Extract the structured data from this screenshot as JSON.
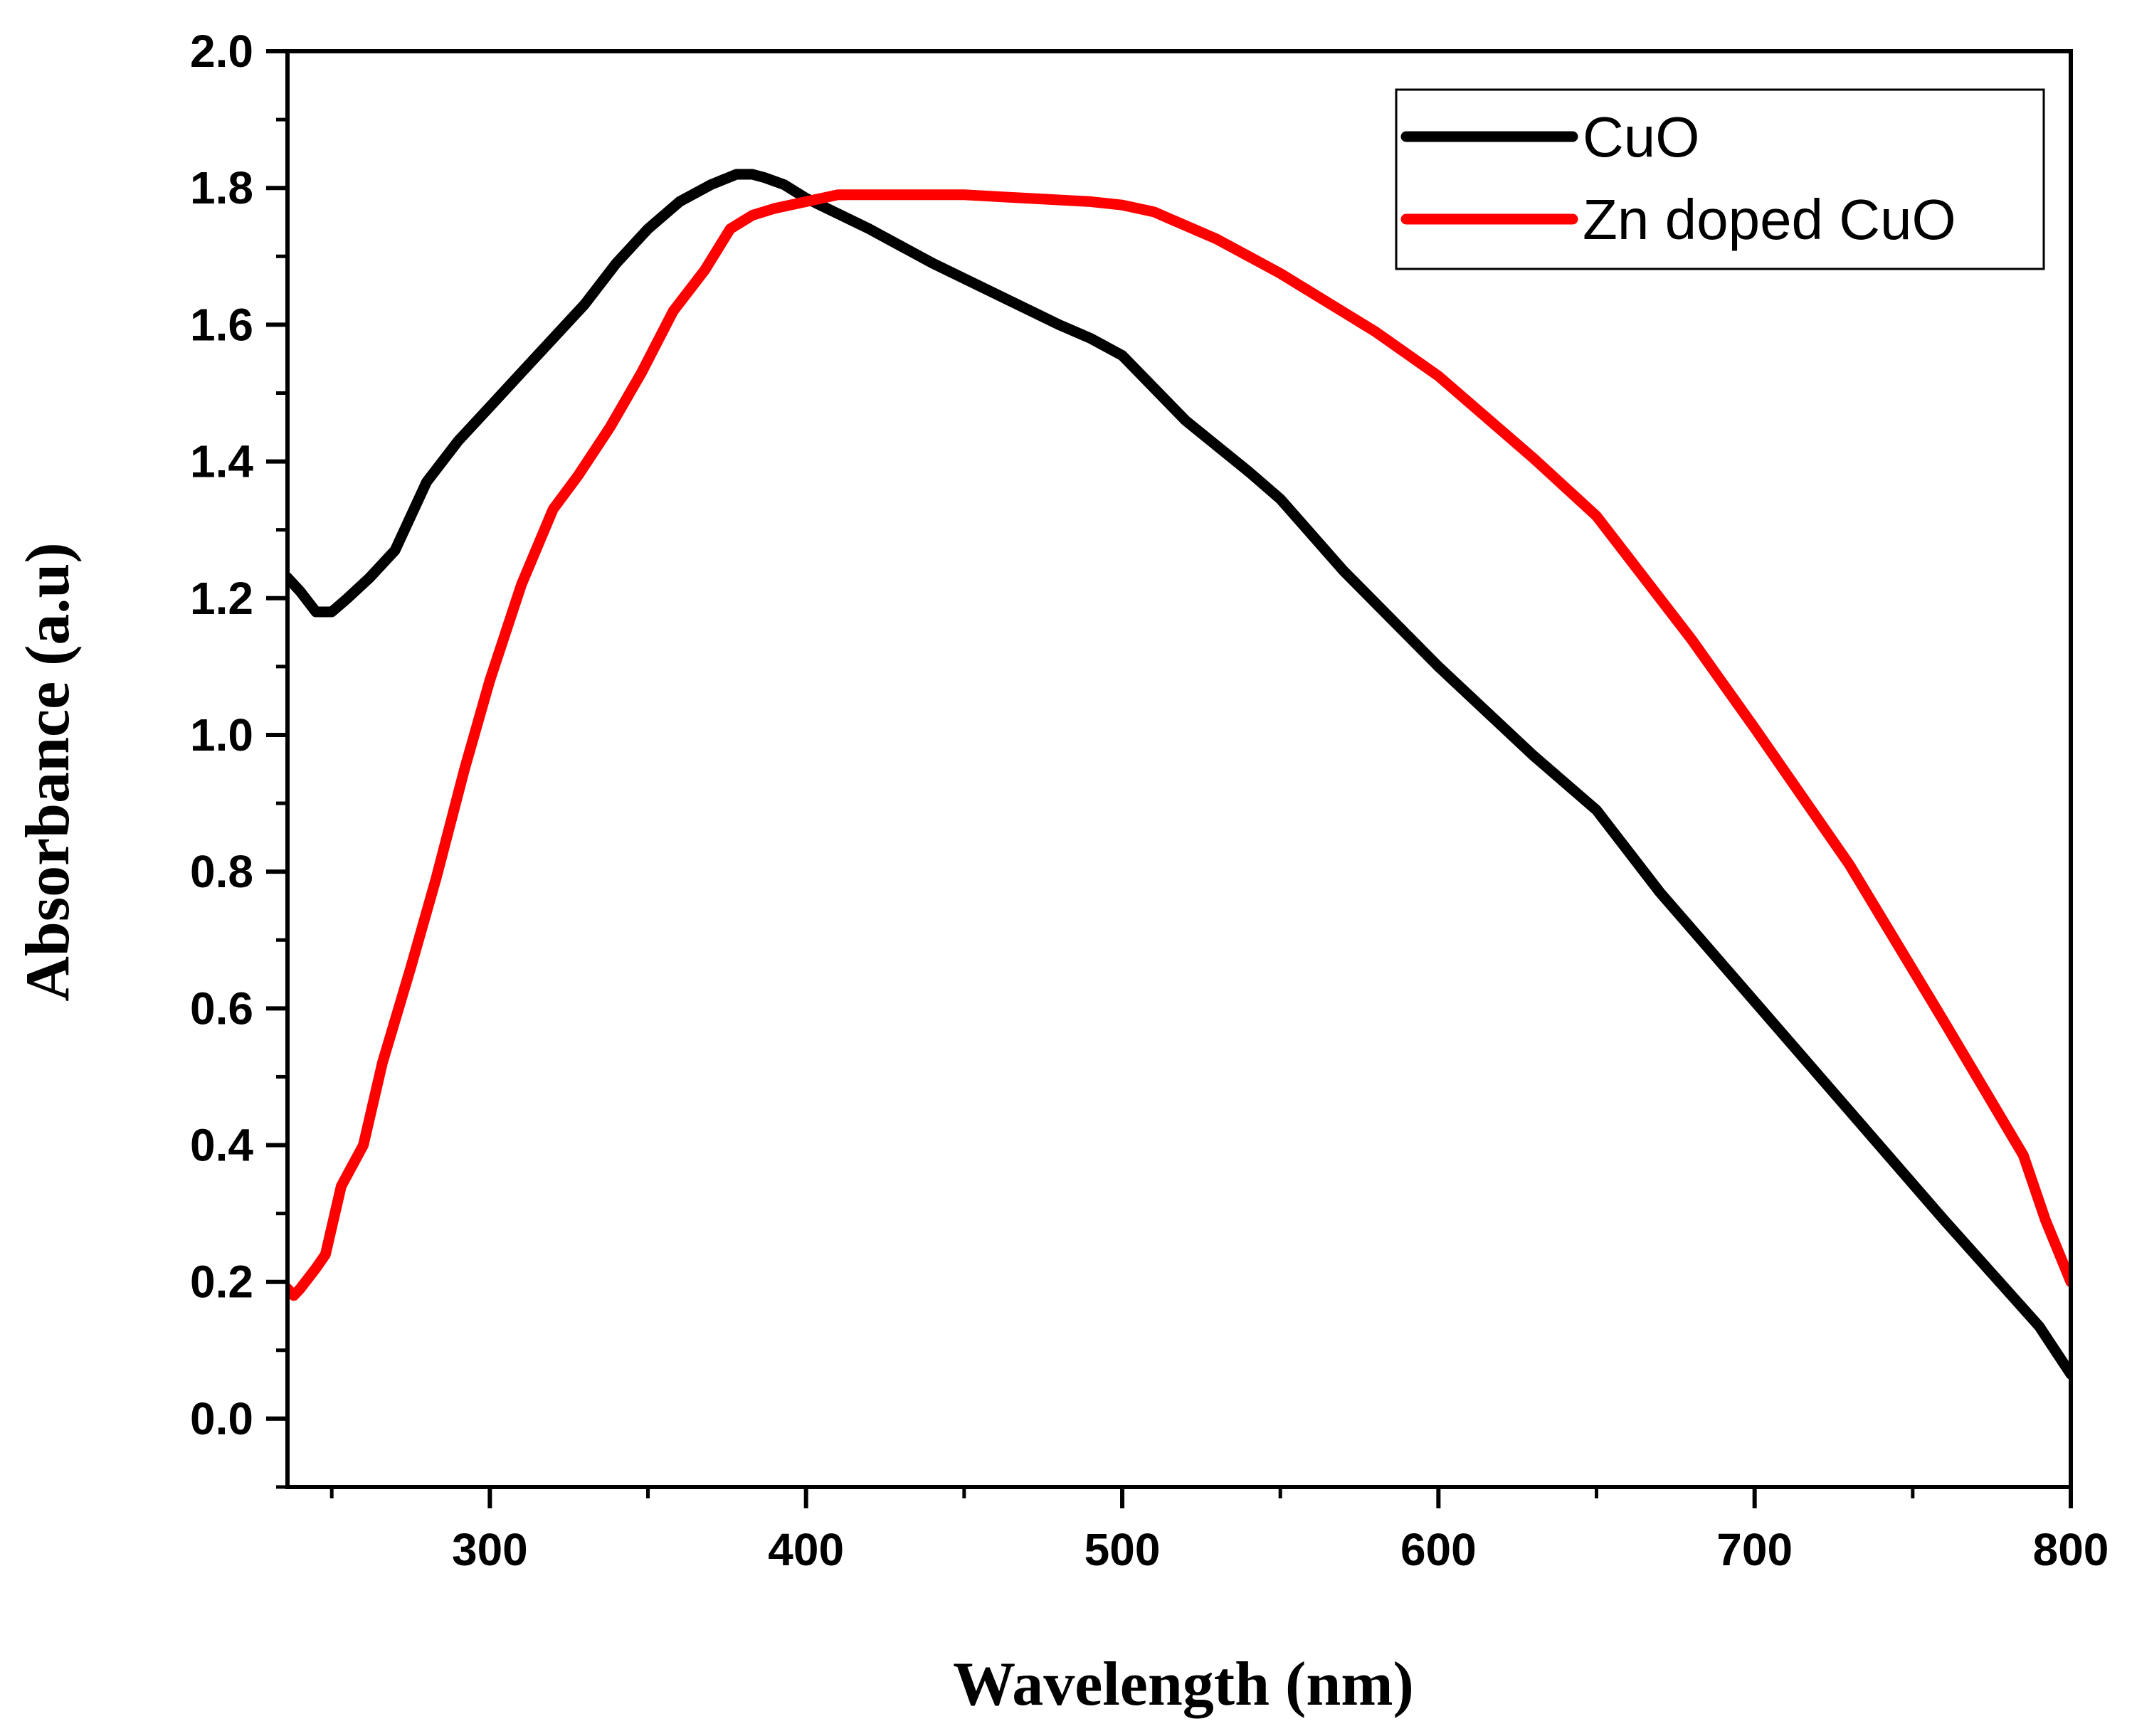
{
  "chart_data": {
    "type": "line",
    "title": "",
    "xlabel": "Wavelength (nm)",
    "ylabel": "Absorbance (a.u)",
    "xlim": [
      236,
      800
    ],
    "ylim": [
      -0.1,
      2.0
    ],
    "xticks": [
      300,
      400,
      500,
      600,
      700,
      800
    ],
    "xtick_labels": [
      "300",
      "400",
      "500",
      "600",
      "700",
      "800"
    ],
    "yticks": [
      0.0,
      0.2,
      0.4,
      0.6,
      0.8,
      1.0,
      1.2,
      1.4,
      1.6,
      1.8,
      2.0
    ],
    "ytick_labels": [
      "0.0",
      "0.2",
      "0.4",
      "0.6",
      "0.8",
      "1.0",
      "1.2",
      "1.4",
      "1.6",
      "1.8",
      "2.0"
    ],
    "grid": false,
    "legend_position": "top-right",
    "series": [
      {
        "name": "CuO",
        "color": "#000000",
        "x": [
          236,
          240,
          245,
          250,
          255,
          262,
          270,
          280,
          290,
          300,
          310,
          320,
          330,
          340,
          350,
          360,
          370,
          378,
          383,
          387,
          393,
          400,
          420,
          440,
          460,
          480,
          490,
          500,
          520,
          540,
          550,
          570,
          600,
          630,
          650,
          670,
          700,
          730,
          760,
          790,
          800
        ],
        "y": [
          1.23,
          1.21,
          1.18,
          1.18,
          1.2,
          1.23,
          1.27,
          1.37,
          1.43,
          1.48,
          1.53,
          1.58,
          1.63,
          1.69,
          1.74,
          1.78,
          1.805,
          1.82,
          1.82,
          1.815,
          1.805,
          1.785,
          1.74,
          1.69,
          1.645,
          1.6,
          1.58,
          1.555,
          1.46,
          1.385,
          1.345,
          1.24,
          1.1,
          0.97,
          0.89,
          0.77,
          0.61,
          0.45,
          0.29,
          0.135,
          0.065
        ]
      },
      {
        "name": "Zn doped CuO",
        "color": "#ff0000",
        "x": [
          236,
          238,
          240,
          245,
          248,
          253,
          260,
          266,
          275,
          283,
          292,
          300,
          310,
          320,
          328,
          338,
          348,
          358,
          368,
          376,
          383,
          390,
          400,
          410,
          430,
          450,
          470,
          490,
          500,
          510,
          530,
          550,
          580,
          600,
          630,
          650,
          680,
          700,
          730,
          760,
          785,
          792,
          800
        ],
        "y": [
          0.19,
          0.18,
          0.19,
          0.22,
          0.24,
          0.34,
          0.4,
          0.52,
          0.66,
          0.79,
          0.95,
          1.08,
          1.22,
          1.33,
          1.38,
          1.45,
          1.53,
          1.62,
          1.68,
          1.74,
          1.76,
          1.77,
          1.78,
          1.79,
          1.79,
          1.79,
          1.785,
          1.78,
          1.775,
          1.765,
          1.725,
          1.675,
          1.59,
          1.525,
          1.405,
          1.32,
          1.14,
          1.01,
          0.81,
          0.58,
          0.385,
          0.29,
          0.2
        ]
      }
    ]
  }
}
